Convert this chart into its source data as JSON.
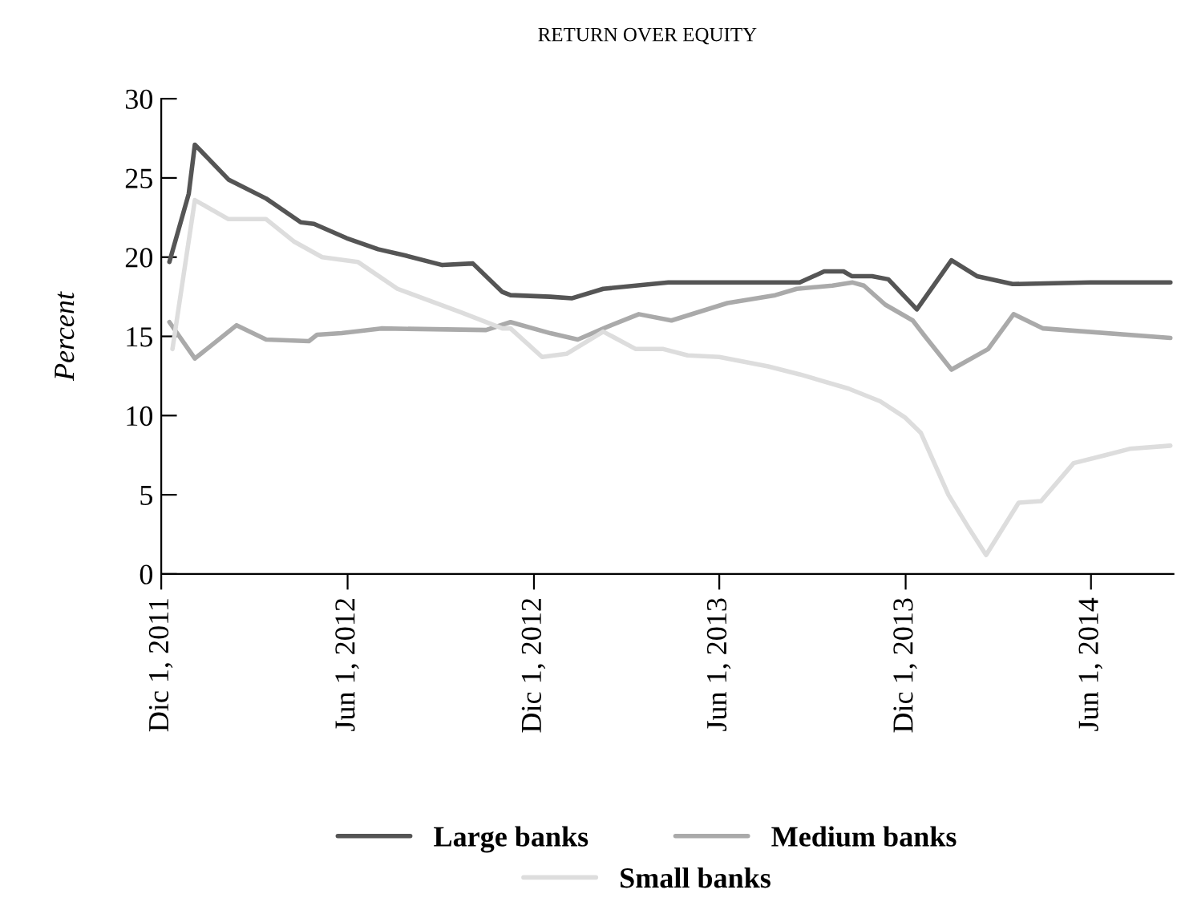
{
  "chart_data": {
    "type": "line",
    "title": "RETURN OVER EQUITY",
    "ylabel": "Percent",
    "legend": "bottom",
    "grid": false,
    "marker": "none",
    "line_style": "solid",
    "xlim": [
      "2011-12-01",
      "2014-08-21"
    ],
    "ylim": [
      0,
      30
    ],
    "yticks": [
      0,
      5,
      10,
      15,
      20,
      25,
      30
    ],
    "xticks": [
      {
        "value": "2011-12-01",
        "label": "Dic 1, 2011"
      },
      {
        "value": "2012-06-01",
        "label": "Jun 1, 2012"
      },
      {
        "value": "2012-12-01",
        "label": "Dic 1, 2012"
      },
      {
        "value": "2013-06-01",
        "label": "Jun 1, 2013"
      },
      {
        "value": "2013-12-01",
        "label": "Dic 1, 2013"
      },
      {
        "value": "2014-06-01",
        "label": "Jun 1, 2014"
      }
    ],
    "series": [
      {
        "name": "Large banks",
        "color": "#555555",
        "x": [
          "2011-12-09",
          "2011-12-28",
          "2012-01-03",
          "2012-02-05",
          "2012-03-13",
          "2012-04-16",
          "2012-04-29",
          "2012-05-31",
          "2012-07-01",
          "2012-07-28",
          "2012-09-02",
          "2012-10-02",
          "2012-10-31",
          "2012-11-08",
          "2012-12-17",
          "2013-01-07",
          "2013-02-07",
          "2013-04-12",
          "2013-08-19",
          "2013-09-12",
          "2013-10-01",
          "2013-10-09",
          "2013-10-29",
          "2013-11-14",
          "2013-12-12",
          "2014-01-15",
          "2014-02-09",
          "2014-03-16",
          "2014-05-31",
          "2014-08-18"
        ],
        "values": [
          19.7,
          24,
          27.1,
          24.9,
          23.7,
          22.2,
          22.1,
          21.2,
          20.5,
          20.1,
          19.5,
          19.6,
          17.8,
          17.6,
          17.5,
          17.4,
          18.0,
          18.4,
          18.4,
          19.1,
          19.1,
          18.8,
          18.8,
          18.6,
          16.7,
          19.8,
          18.8,
          18.3,
          18.4,
          18.4
        ]
      },
      {
        "name": "Medium banks",
        "color": "#aaaaaa",
        "x": [
          "2011-12-09",
          "2012-01-03",
          "2012-02-13",
          "2012-03-13",
          "2012-04-24",
          "2012-05-02",
          "2012-05-26",
          "2012-07-04",
          "2012-10-15",
          "2012-11-08",
          "2012-12-17",
          "2013-01-13",
          "2013-02-11",
          "2013-03-14",
          "2013-04-15",
          "2013-06-09",
          "2013-07-26",
          "2013-08-16",
          "2013-09-20",
          "2013-10-10",
          "2013-10-21",
          "2013-11-11",
          "2013-12-08",
          "2013-12-20",
          "2014-01-15",
          "2014-02-20",
          "2014-03-17",
          "2014-04-15",
          "2014-08-18"
        ],
        "values": [
          15.9,
          13.6,
          15.7,
          14.8,
          14.7,
          15.1,
          15.2,
          15.5,
          15.4,
          15.9,
          15.2,
          14.8,
          15.6,
          16.4,
          16.0,
          17.1,
          17.6,
          18.0,
          18.2,
          18.4,
          18.2,
          17.0,
          16.0,
          15.0,
          12.9,
          14.2,
          16.4,
          15.5,
          14.9
        ]
      },
      {
        "name": "Small banks",
        "color": "#dddddd",
        "x": [
          "2011-12-12",
          "2012-01-03",
          "2012-02-05",
          "2012-03-13",
          "2012-04-09",
          "2012-05-07",
          "2012-06-11",
          "2012-07-20",
          "2012-09-21",
          "2012-10-31",
          "2012-11-08",
          "2012-12-09",
          "2013-01-02",
          "2013-02-07",
          "2013-03-11",
          "2013-04-07",
          "2013-05-01",
          "2013-06-01",
          "2013-07-19",
          "2013-08-19",
          "2013-10-06",
          "2013-11-06",
          "2013-11-30",
          "2013-12-16",
          "2014-01-12",
          "2014-02-01",
          "2014-02-18",
          "2014-03-22",
          "2014-04-13",
          "2014-05-15",
          "2014-06-15",
          "2014-07-09",
          "2014-08-18"
        ],
        "values": [
          14.2,
          23.6,
          22.4,
          22.4,
          21.0,
          20.0,
          19.7,
          18.0,
          16.5,
          15.5,
          15.5,
          13.7,
          13.9,
          15.3,
          14.2,
          14.2,
          13.8,
          13.7,
          13.1,
          12.6,
          11.7,
          10.9,
          9.9,
          8.9,
          5.0,
          2.9,
          1.2,
          4.5,
          4.6,
          7.0,
          7.5,
          7.9,
          8.1
        ]
      }
    ]
  }
}
